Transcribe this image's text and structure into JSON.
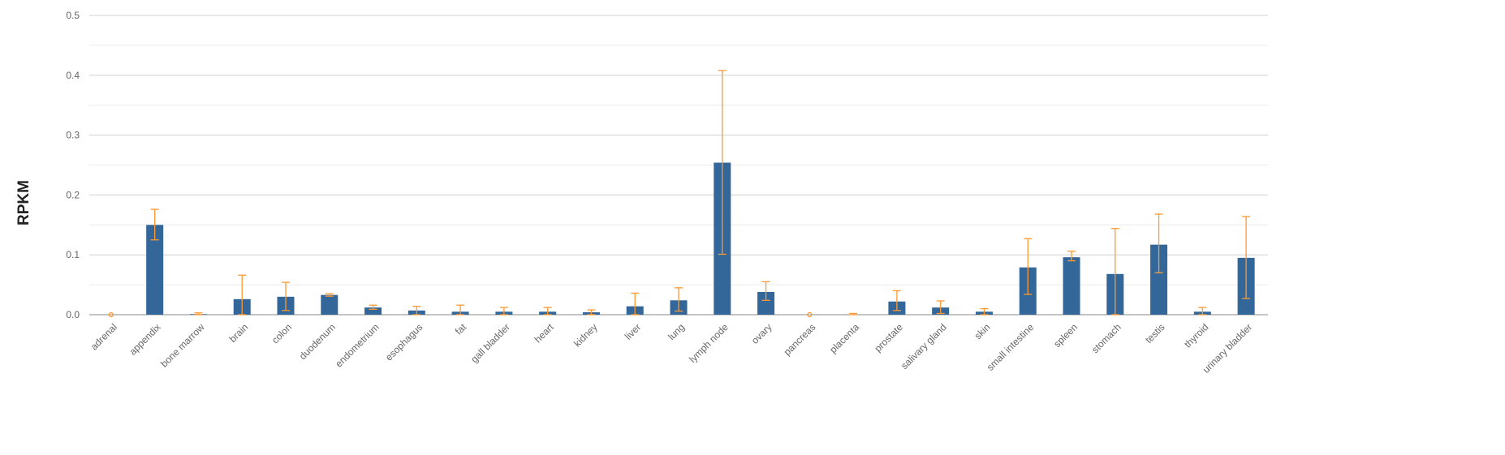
{
  "chart_data": {
    "type": "bar",
    "title": "",
    "xlabel": "",
    "ylabel": "RPKM",
    "ylim": [
      0,
      0.5
    ],
    "y_ticks": [
      "0.0",
      "0.1",
      "0.2",
      "0.3",
      "0.4",
      "0.5"
    ],
    "grid": true,
    "legend": "none",
    "categories": [
      "adrenal",
      "appendix",
      "bone marrow",
      "brain",
      "colon",
      "duodenum",
      "endometrium",
      "esophagus",
      "fat",
      "gall bladder",
      "heart",
      "kidney",
      "liver",
      "lung",
      "lymph node",
      "ovary",
      "pancreas",
      "placenta",
      "prostate",
      "salivary gland",
      "skin",
      "small intestine",
      "spleen",
      "stomach",
      "testis",
      "thyroid",
      "urinary bladder"
    ],
    "series": [
      {
        "values": [
          0.0,
          0.15,
          0.001,
          0.026,
          0.03,
          0.033,
          0.012,
          0.007,
          0.005,
          0.005,
          0.005,
          0.004,
          0.014,
          0.024,
          0.254,
          0.038,
          0.0,
          0.0,
          0.022,
          0.012,
          0.005,
          0.079,
          0.096,
          0.068,
          0.117,
          0.005,
          0.095
        ],
        "error_low": [
          0.0,
          0.125,
          0.0,
          0.0,
          0.007,
          0.031,
          0.009,
          0.0,
          0.0,
          0.0,
          0.0,
          0.0,
          0.0,
          0.006,
          0.101,
          0.024,
          0.0,
          0.0,
          0.007,
          0.002,
          0.0,
          0.034,
          0.09,
          0.0,
          0.07,
          0.0,
          0.027
        ],
        "error_high": [
          0.0,
          0.176,
          0.003,
          0.066,
          0.054,
          0.035,
          0.016,
          0.014,
          0.016,
          0.012,
          0.012,
          0.008,
          0.036,
          0.045,
          0.408,
          0.055,
          0.0,
          0.002,
          0.04,
          0.023,
          0.01,
          0.127,
          0.106,
          0.144,
          0.168,
          0.012,
          0.164
        ]
      }
    ],
    "colors": {
      "bar": "#336699",
      "error": "#ff9933",
      "grid_major": "#d0d0d0",
      "grid_minor": "#ebebeb",
      "axis": "#888888",
      "tick_text": "#666666"
    }
  }
}
